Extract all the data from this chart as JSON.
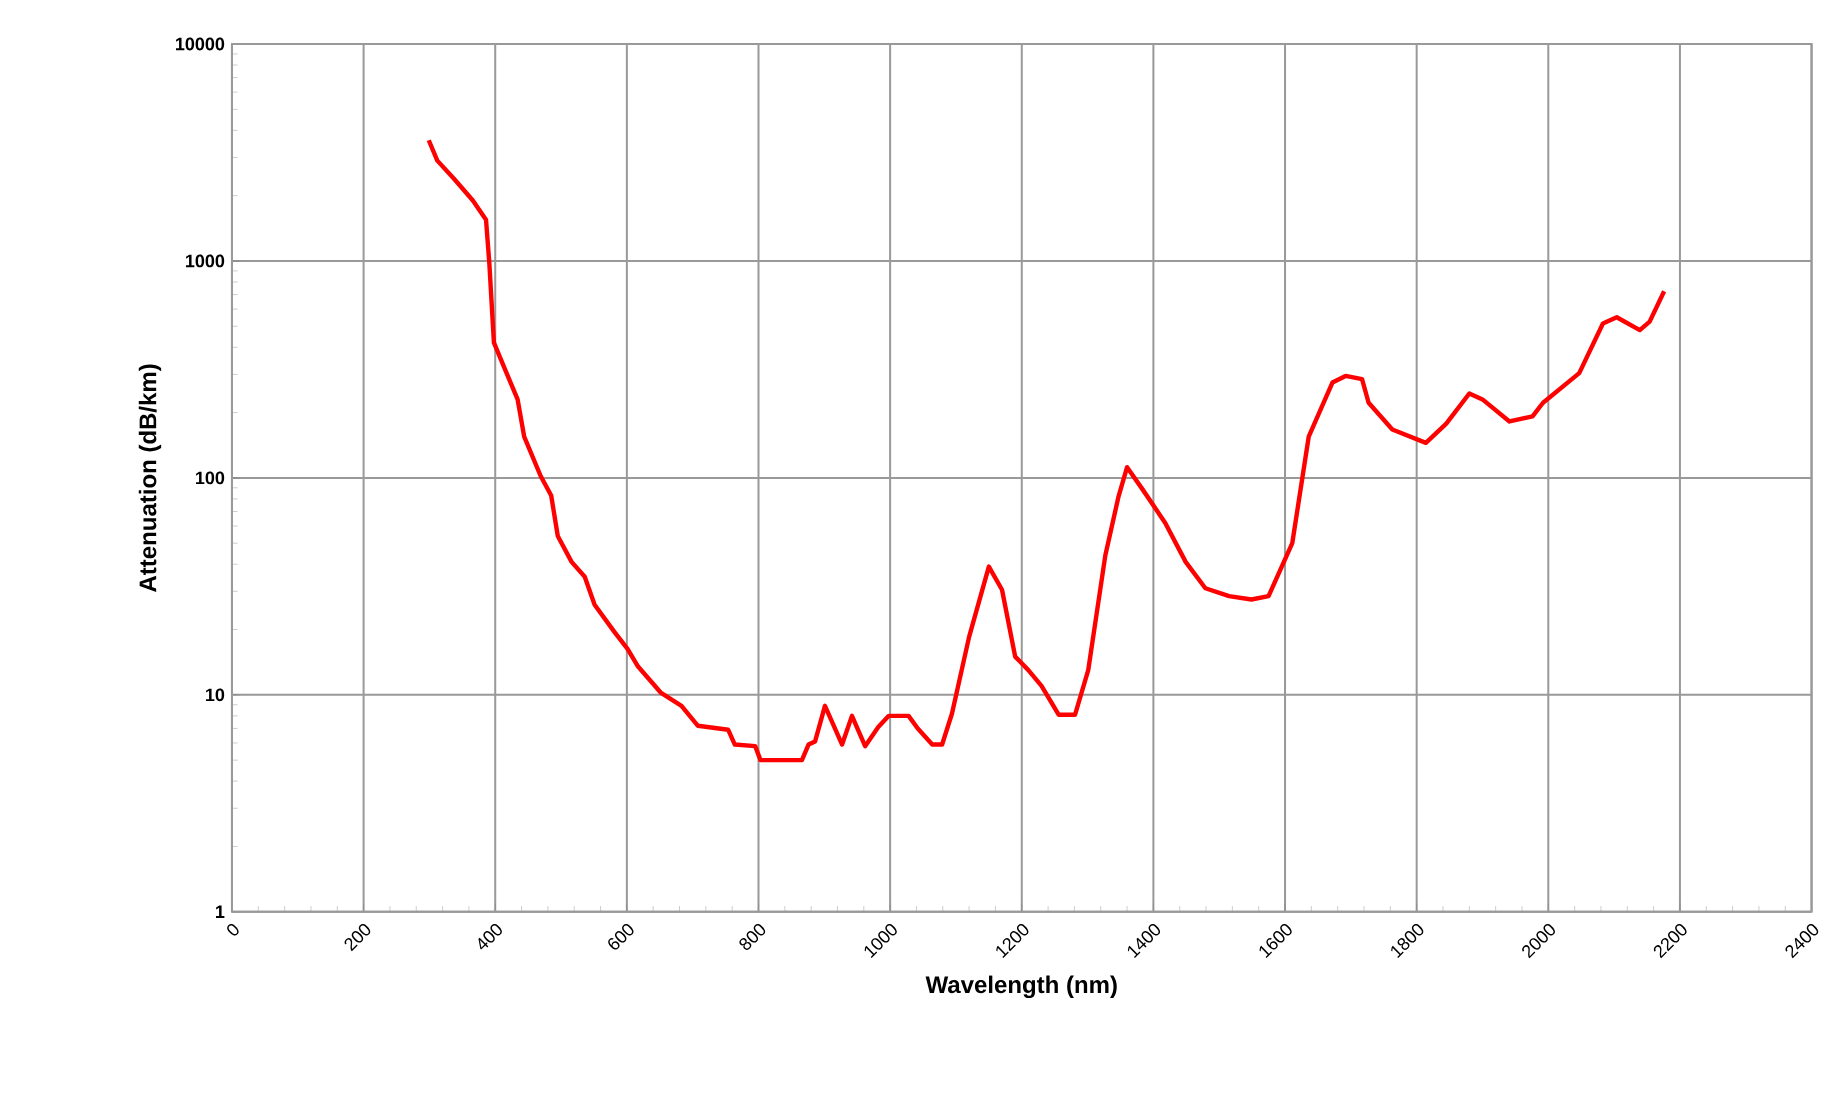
{
  "chart_data": {
    "type": "line",
    "xlabel": "Wavelength (nm)",
    "ylabel": "Attenuation (dB/km)",
    "log": "y",
    "grid": true,
    "xlim": [
      0,
      2400
    ],
    "ylim": [
      1,
      10000
    ],
    "xticks": [
      0,
      200,
      400,
      600,
      800,
      1000,
      1200,
      1400,
      1600,
      1800,
      2000,
      2200,
      2400
    ],
    "yticks": [
      1,
      10,
      100,
      1000,
      10000
    ],
    "series": [
      {
        "color": "#ff0000",
        "x": [
          299,
          312,
          337,
          366,
          386,
          391,
          398,
          419,
          434,
          444,
          469,
          485,
          495,
          516,
          536,
          551,
          581,
          601,
          617,
          652,
          683,
          708,
          754,
          764,
          795,
          803,
          866,
          876,
          886,
          901,
          927,
          942,
          962,
          982,
          998,
          1028,
          1042,
          1064,
          1079,
          1094,
          1120,
          1150,
          1170,
          1190,
          1210,
          1230,
          1256,
          1281,
          1301,
          1327,
          1347,
          1360,
          1383,
          1418,
          1449,
          1479,
          1515,
          1549,
          1575,
          1611,
          1636,
          1672,
          1692,
          1717,
          1727,
          1763,
          1814,
          1845,
          1880,
          1900,
          1941,
          1976,
          1992,
          2047,
          2083,
          2104,
          2139,
          2154,
          2176
        ],
        "values": [
          3600,
          2900,
          2400,
          1900,
          1550,
          980,
          420,
          295,
          230,
          155,
          102,
          83,
          54,
          41,
          35,
          26,
          19.5,
          16.3,
          13.5,
          10.2,
          8.9,
          7.2,
          6.9,
          5.9,
          5.8,
          5,
          5,
          5.9,
          6.1,
          8.9,
          5.9,
          8,
          5.8,
          7.1,
          8,
          8,
          7,
          5.9,
          5.9,
          8.2,
          18.5,
          39,
          30.5,
          15,
          13,
          11,
          8.1,
          8.1,
          13,
          44,
          82,
          112,
          89,
          62,
          41,
          31,
          28.5,
          27.5,
          28.5,
          50,
          155,
          275,
          295,
          285,
          222,
          167,
          145,
          178,
          245,
          230,
          182,
          192,
          222,
          304,
          515,
          550,
          480,
          525,
          725
        ]
      }
    ]
  }
}
